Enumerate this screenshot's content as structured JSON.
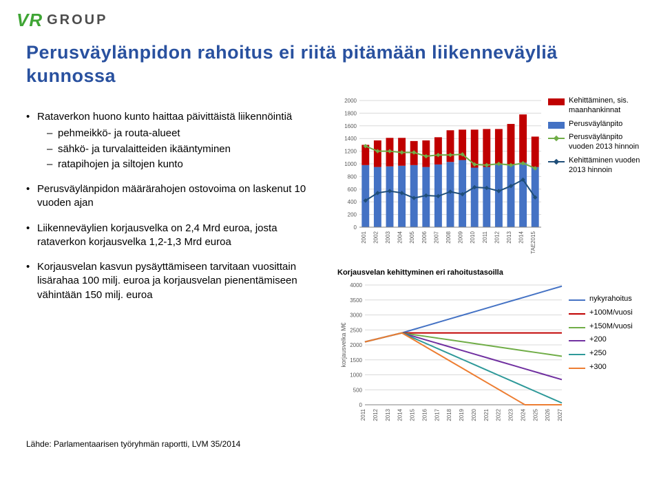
{
  "logo": {
    "vr": "VR",
    "group": "GROUP",
    "vr_color": "#3fa535",
    "group_color": "#4d4d4d"
  },
  "title": "Perusväylänpidon rahoitus ei riitä pitämään liikenneväyliä kunnossa",
  "title_color": "#29519f",
  "bullets": [
    {
      "text": "Rataverkon huono kunto haittaa päivittäistä liikennöintiä",
      "sub": [
        "pehmeikkö- ja routa-alueet",
        "sähkö- ja turvalaitteiden ikääntyminen",
        "ratapihojen ja siltojen kunto"
      ]
    },
    {
      "text": "Perusväylänpidon määrärahojen ostovoima on laskenut 10 vuoden ajan",
      "sub": []
    },
    {
      "text": "Liikenneväylien korjausvelka on 2,4 Mrd euroa, josta rataverkon korjausvelka 1,2-1,3 Mrd euroa",
      "sub": []
    },
    {
      "text": "Korjausvelan kasvun pysäyttämiseen tarvitaan vuosittain lisärahaa 100 milj. euroa ja korjausvelan pienentämiseen vähintään 150 milj. euroa",
      "sub": []
    }
  ],
  "source": "Lähde: Parlamentaarisen työryhmän raportti, LVM 35/2014",
  "chart1": {
    "type": "stacked-bar-with-lines",
    "years": [
      "2001",
      "2002",
      "2003",
      "2004",
      "2005",
      "2006",
      "2007",
      "2008",
      "2009",
      "2010",
      "2011",
      "2012",
      "2013",
      "2014",
      "TAE2015"
    ],
    "perus": [
      980,
      950,
      960,
      970,
      980,
      950,
      990,
      1030,
      1060,
      940,
      950,
      990,
      980,
      1020,
      950
    ],
    "kehit": [
      320,
      420,
      450,
      440,
      380,
      420,
      430,
      500,
      480,
      600,
      600,
      560,
      650,
      760,
      480
    ],
    "line_perus2013": [
      1280,
      1200,
      1200,
      1180,
      1180,
      1120,
      1140,
      1140,
      1150,
      990,
      980,
      1000,
      980,
      1010,
      930
    ],
    "line_kehit2013": [
      420,
      540,
      570,
      540,
      460,
      500,
      490,
      560,
      520,
      630,
      620,
      570,
      650,
      750,
      470
    ],
    "ylim": [
      0,
      2000
    ],
    "ytick_step": 200,
    "colors": {
      "perus": "#4472c4",
      "kehit": "#c00000",
      "line_perus": "#70ad47",
      "line_kehit": "#1f4e79",
      "grid": "#d9d9d9",
      "axis": "#808080",
      "bg": "#ffffff"
    },
    "legend": [
      {
        "type": "swatch",
        "color": "#c00000",
        "label": "Kehittäminen, sis. maanhankinnat"
      },
      {
        "type": "swatch",
        "color": "#4472c4",
        "label": "Perusväylänpito"
      },
      {
        "type": "line-marker",
        "color": "#70ad47",
        "label": "Perusväylänpito vuoden 2013 hinnoin"
      },
      {
        "type": "line-marker",
        "color": "#1f4e79",
        "label": "Kehittäminen vuoden 2013 hinnoin"
      }
    ],
    "label_fontsize": 8,
    "tick_fontsize": 8
  },
  "chart2": {
    "type": "line",
    "title": "Korjausvelan kehittyminen eri rahoitustasoilla",
    "ylabel": "korjausvelka M€",
    "years": [
      "2011",
      "2012",
      "2013",
      "2014",
      "2015",
      "2016",
      "2017",
      "2018",
      "2019",
      "2020",
      "2021",
      "2022",
      "2023",
      "2024",
      "2025",
      "2026",
      "2027"
    ],
    "series": [
      {
        "name": "nykyrahoitus",
        "color": "#4472c4",
        "values": [
          2100,
          2200,
          2300,
          2400,
          2520,
          2640,
          2760,
          2880,
          3000,
          3120,
          3240,
          3360,
          3480,
          3600,
          3720,
          3840,
          3960
        ]
      },
      {
        "name": "+100M/vuosi",
        "color": "#c00000",
        "values": [
          2100,
          2200,
          2300,
          2400,
          2400,
          2400,
          2400,
          2400,
          2400,
          2400,
          2400,
          2400,
          2400,
          2400,
          2400,
          2400,
          2400
        ]
      },
      {
        "name": "+150M/vuosi",
        "color": "#70ad47",
        "values": [
          2100,
          2200,
          2300,
          2400,
          2340,
          2280,
          2220,
          2160,
          2100,
          2040,
          1980,
          1920,
          1860,
          1800,
          1740,
          1680,
          1620
        ]
      },
      {
        "name": "+200",
        "color": "#7030a0",
        "values": [
          2100,
          2200,
          2300,
          2400,
          2280,
          2160,
          2040,
          1920,
          1800,
          1680,
          1560,
          1440,
          1320,
          1200,
          1080,
          960,
          840
        ]
      },
      {
        "name": "+250",
        "color": "#2e9999",
        "values": [
          2100,
          2200,
          2300,
          2400,
          2220,
          2040,
          1860,
          1680,
          1500,
          1320,
          1140,
          960,
          780,
          600,
          420,
          240,
          60
        ]
      },
      {
        "name": "+300",
        "color": "#ed7d31",
        "values": [
          2100,
          2200,
          2300,
          2400,
          2160,
          1920,
          1680,
          1440,
          1200,
          960,
          720,
          480,
          240,
          0,
          0,
          0,
          0
        ]
      }
    ],
    "ylim": [
      0,
      4000
    ],
    "ytick_step": 500,
    "colors": {
      "grid": "#d9d9d9",
      "axis": "#808080",
      "bg": "#ffffff"
    },
    "tick_fontsize": 8,
    "label_fontsize": 9,
    "title_fontsize": 11
  }
}
